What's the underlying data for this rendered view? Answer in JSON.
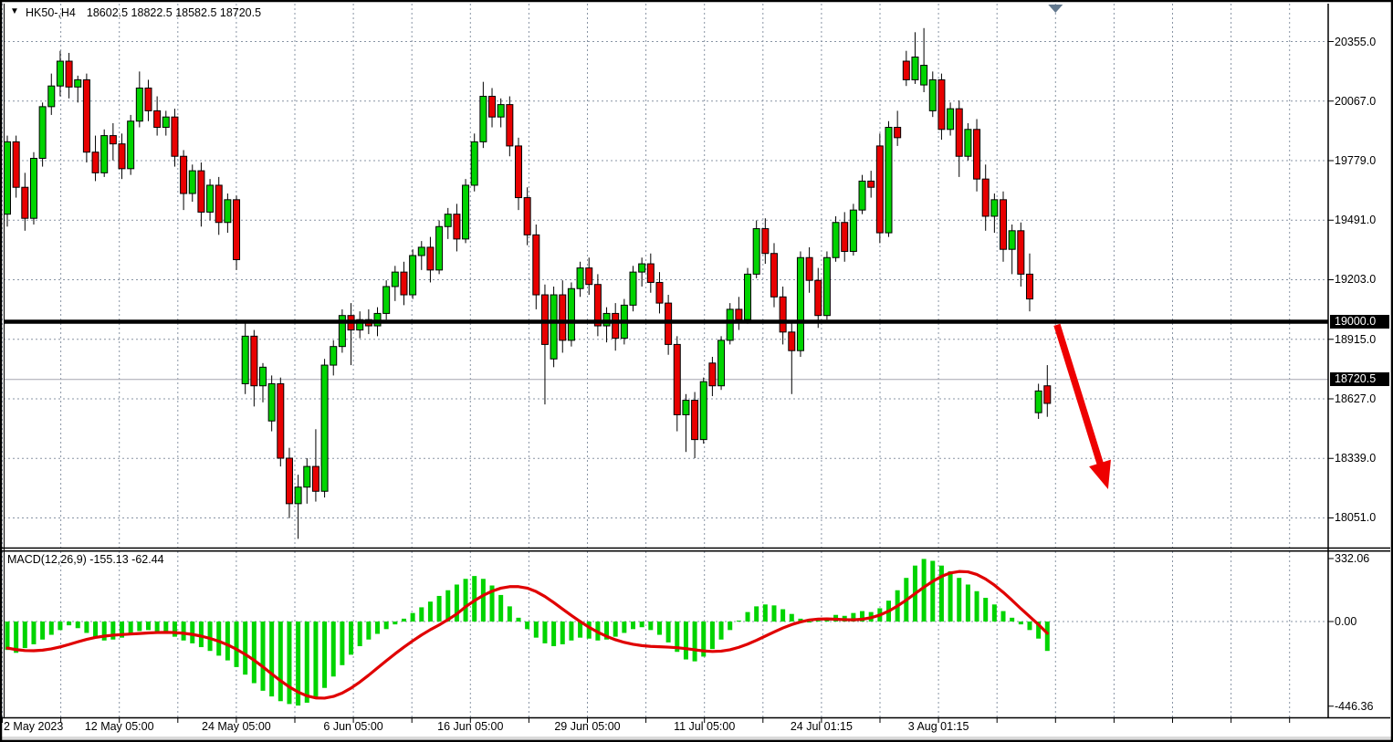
{
  "title_bar": {
    "dropdown_icon": "▼",
    "symbol_period": "HK50-,H4",
    "ohlc_values": "18602.5 18822.5 18582.5 18720.5"
  },
  "price_axis": {
    "tick_labels": [
      "20355.0",
      "20067.0",
      "19779.0",
      "19491.0",
      "19203.0",
      "18915.0",
      "18627.0",
      "18339.0",
      "18051.0"
    ],
    "tick_values": [
      20355,
      20067,
      19779,
      19491,
      19203,
      18915,
      18627,
      18339,
      18051
    ],
    "highlighted_tags": [
      {
        "label": "19000.0",
        "value": 19000.0
      },
      {
        "label": "18720.5",
        "value": 18720.5
      }
    ]
  },
  "macd_panel": {
    "indicator_label": "MACD(12,26,9) -155.13 -62.44",
    "axis_labels": [
      "332.06",
      "0.00",
      "-446.36"
    ],
    "axis_values": [
      332.06,
      0,
      -446.36
    ]
  },
  "time_axis": {
    "labels": [
      "2 May 2023",
      "12 May 05:00",
      "24 May 05:00",
      "6 Jun 05:00",
      "16 Jun 05:00",
      "29 Jun 05:00",
      "11 Jul 05:00",
      "24 Jul 01:15",
      "3 Aug 01:15"
    ],
    "grid_positions": [
      0,
      2,
      4,
      6,
      8,
      10,
      12,
      14,
      16
    ]
  },
  "colors": {
    "bull": "#00D400",
    "bear": "#E80000",
    "candle_outline": "#000000",
    "grid": "#8894A4",
    "level_line": "#000000",
    "last_price_line": "#A6A6B0",
    "arrow": "#EE0000",
    "signal_line": "#E00000",
    "histogram": "#00D400",
    "shift_marker": "#63798F",
    "tag_bg": "#000000",
    "tag_text": "#FFFFFF"
  },
  "chart_data": [
    {
      "type": "candlestick",
      "title": "HK50-,H4",
      "timeframe": "H4",
      "current_bar": {
        "open": 18602.5,
        "high": 18822.5,
        "low": 18582.5,
        "close": 18720.5
      },
      "y_ticks": [
        20355,
        20067,
        19779,
        19491,
        19203,
        18915,
        18627,
        18339,
        18051
      ],
      "ylim": [
        17912,
        20538
      ],
      "x_tick_labels": [
        "2 May 2023",
        "12 May 05:00",
        "24 May 05:00",
        "6 Jun 05:00",
        "16 Jun 05:00",
        "29 Jun 05:00",
        "11 Jul 05:00",
        "24 Jul 01:15",
        "3 Aug 01:15"
      ],
      "horizontal_level": 19000.0,
      "last_price": 18720.5,
      "annotation_arrow": {
        "from_bar": 119.1,
        "from_price": 18985,
        "to_bar": 124.9,
        "to_price": 18190
      },
      "candles": [
        [
          19520,
          19900,
          19460,
          19870
        ],
        [
          19870,
          19900,
          19600,
          19650
        ],
        [
          19650,
          19720,
          19440,
          19500
        ],
        [
          19500,
          19820,
          19470,
          19790
        ],
        [
          19790,
          20060,
          19750,
          20040
        ],
        [
          20040,
          20200,
          20000,
          20140
        ],
        [
          20140,
          20310,
          20090,
          20260
        ],
        [
          20260,
          20300,
          20080,
          20135
        ],
        [
          20135,
          20190,
          20060,
          20170
        ],
        [
          20170,
          20200,
          19770,
          19820
        ],
        [
          19820,
          19900,
          19680,
          19720
        ],
        [
          19720,
          19930,
          19700,
          19900
        ],
        [
          19900,
          19960,
          19780,
          19860
        ],
        [
          19860,
          19910,
          19690,
          19740
        ],
        [
          19740,
          20000,
          19710,
          19970
        ],
        [
          19970,
          20210,
          19940,
          20130
        ],
        [
          20130,
          20170,
          19970,
          20020
        ],
        [
          20020,
          20090,
          19900,
          19940
        ],
        [
          19940,
          20020,
          19900,
          19990
        ],
        [
          19990,
          20030,
          19750,
          19800
        ],
        [
          19800,
          19830,
          19540,
          19620
        ],
        [
          19620,
          19760,
          19580,
          19730
        ],
        [
          19730,
          19770,
          19460,
          19530
        ],
        [
          19530,
          19690,
          19490,
          19660
        ],
        [
          19660,
          19700,
          19420,
          19480
        ],
        [
          19480,
          19620,
          19430,
          19590
        ],
        [
          19590,
          19610,
          19250,
          19300
        ],
        [
          18700,
          19000,
          18650,
          18930
        ],
        [
          18930,
          18960,
          18590,
          18690
        ],
        [
          18690,
          18800,
          18610,
          18780
        ],
        [
          18520,
          18740,
          18470,
          18700
        ],
        [
          18700,
          18730,
          18300,
          18340
        ],
        [
          18340,
          18390,
          18050,
          18120
        ],
        [
          18120,
          18260,
          17950,
          18200
        ],
        [
          18200,
          18340,
          18120,
          18300
        ],
        [
          18300,
          18480,
          18130,
          18180
        ],
        [
          18180,
          18820,
          18150,
          18790
        ],
        [
          18790,
          18910,
          18740,
          18880
        ],
        [
          18880,
          19060,
          18850,
          19030
        ],
        [
          19030,
          19090,
          18790,
          18960
        ],
        [
          18960,
          19050,
          18920,
          19010
        ],
        [
          19010,
          19060,
          18940,
          18980
        ],
        [
          18980,
          19070,
          18930,
          19040
        ],
        [
          19040,
          19200,
          19010,
          19170
        ],
        [
          19170,
          19270,
          19100,
          19240
        ],
        [
          19240,
          19290,
          19080,
          19130
        ],
        [
          19130,
          19350,
          19110,
          19320
        ],
        [
          19320,
          19390,
          19250,
          19360
        ],
        [
          19360,
          19410,
          19190,
          19250
        ],
        [
          19250,
          19490,
          19230,
          19460
        ],
        [
          19460,
          19550,
          19400,
          19520
        ],
        [
          19520,
          19570,
          19340,
          19400
        ],
        [
          19400,
          19690,
          19380,
          19660
        ],
        [
          19660,
          19910,
          19630,
          19870
        ],
        [
          19870,
          20160,
          19840,
          20090
        ],
        [
          20090,
          20130,
          19940,
          19990
        ],
        [
          19990,
          20080,
          19940,
          20050
        ],
        [
          20050,
          20090,
          19800,
          19850
        ],
        [
          19850,
          19890,
          19540,
          19600
        ],
        [
          19600,
          19650,
          19370,
          19420
        ],
        [
          19420,
          19470,
          19060,
          19130
        ],
        [
          19130,
          19180,
          18600,
          18890
        ],
        [
          18820,
          19170,
          18780,
          19130
        ],
        [
          19130,
          19200,
          18850,
          18910
        ],
        [
          18910,
          19190,
          18880,
          19160
        ],
        [
          19160,
          19290,
          19120,
          19260
        ],
        [
          19260,
          19310,
          19130,
          19180
        ],
        [
          19180,
          19230,
          18930,
          18980
        ],
        [
          18980,
          19070,
          18900,
          19040
        ],
        [
          19040,
          19090,
          18860,
          18920
        ],
        [
          18920,
          19110,
          18890,
          19080
        ],
        [
          19080,
          19270,
          19050,
          19240
        ],
        [
          19240,
          19310,
          19170,
          19280
        ],
        [
          19280,
          19330,
          19140,
          19190
        ],
        [
          19190,
          19240,
          19040,
          19090
        ],
        [
          19090,
          19130,
          18840,
          18890
        ],
        [
          18890,
          18930,
          18470,
          18550
        ],
        [
          18550,
          18650,
          18370,
          18620
        ],
        [
          18620,
          18660,
          18340,
          18430
        ],
        [
          18430,
          18730,
          18410,
          18710
        ],
        [
          18800,
          18830,
          18640,
          18690
        ],
        [
          18690,
          18930,
          18670,
          18910
        ],
        [
          18910,
          19090,
          18890,
          19060
        ],
        [
          19060,
          19120,
          18960,
          19010
        ],
        [
          19010,
          19260,
          18990,
          19230
        ],
        [
          19230,
          19490,
          19210,
          19450
        ],
        [
          19450,
          19500,
          19280,
          19330
        ],
        [
          19330,
          19380,
          19070,
          19120
        ],
        [
          19120,
          19170,
          18890,
          18950
        ],
        [
          18950,
          19000,
          18650,
          18860
        ],
        [
          18860,
          19340,
          18830,
          19310
        ],
        [
          19310,
          19360,
          19140,
          19200
        ],
        [
          19200,
          19260,
          18970,
          19030
        ],
        [
          19030,
          19340,
          19010,
          19310
        ],
        [
          19310,
          19510,
          19290,
          19480
        ],
        [
          19480,
          19530,
          19290,
          19340
        ],
        [
          19340,
          19570,
          19320,
          19540
        ],
        [
          19540,
          19710,
          19520,
          19680
        ],
        [
          19680,
          19730,
          19600,
          19650
        ],
        [
          19850,
          19910,
          19380,
          19430
        ],
        [
          19430,
          19970,
          19410,
          19940
        ],
        [
          19940,
          20020,
          19850,
          19890
        ],
        [
          20260,
          20310,
          20140,
          20170
        ],
        [
          20170,
          20400,
          20150,
          20280
        ],
        [
          20145,
          20420,
          20110,
          20240
        ],
        [
          20020,
          20210,
          19990,
          20170
        ],
        [
          20170,
          20200,
          19880,
          19930
        ],
        [
          19930,
          20060,
          19900,
          20030
        ],
        [
          20030,
          20070,
          19700,
          19800
        ],
        [
          19800,
          19960,
          19780,
          19930
        ],
        [
          19930,
          19980,
          19630,
          19690
        ],
        [
          19690,
          19760,
          19440,
          19510
        ],
        [
          19510,
          19620,
          19430,
          19590
        ],
        [
          19590,
          19630,
          19290,
          19350
        ],
        [
          19350,
          19470,
          19230,
          19440
        ],
        [
          19440,
          19480,
          19170,
          19230
        ],
        [
          19230,
          19330,
          19050,
          19110
        ],
        [
          18560,
          18700,
          18530,
          18665
        ],
        [
          18690,
          18790,
          18540,
          18605
        ]
      ]
    },
    {
      "type": "bar",
      "title": "MACD(12,26,9)",
      "macd_current": -155.13,
      "signal_current": -62.44,
      "y_ticks": [
        332.06,
        0,
        -446.36
      ],
      "ylim": [
        -446.36,
        332.06
      ],
      "values": [
        -150,
        -165,
        -140,
        -120,
        -95,
        -70,
        -45,
        -20,
        -35,
        -60,
        -85,
        -100,
        -95,
        -85,
        -70,
        -50,
        -45,
        -55,
        -65,
        -80,
        -100,
        -115,
        -135,
        -155,
        -180,
        -205,
        -240,
        -280,
        -325,
        -365,
        -395,
        -420,
        -435,
        -443,
        -428,
        -400,
        -350,
        -290,
        -230,
        -175,
        -130,
        -95,
        -65,
        -40,
        -15,
        15,
        45,
        75,
        105,
        135,
        165,
        195,
        225,
        240,
        225,
        190,
        140,
        80,
        20,
        -40,
        -85,
        -115,
        -130,
        -120,
        -100,
        -85,
        -90,
        -100,
        -95,
        -80,
        -60,
        -40,
        -30,
        -45,
        -70,
        -110,
        -160,
        -200,
        -210,
        -185,
        -145,
        -95,
        -45,
        5,
        50,
        80,
        90,
        85,
        65,
        40,
        15,
        -5,
        5,
        20,
        35,
        30,
        45,
        55,
        50,
        70,
        110,
        165,
        230,
        295,
        330,
        320,
        295,
        265,
        230,
        195,
        160,
        125,
        90,
        55,
        20,
        -15,
        -45,
        -90,
        -155
      ],
      "series": [
        {
          "name": "signal",
          "values": [
            -140,
            -148,
            -153,
            -154,
            -151,
            -144,
            -134,
            -121,
            -107,
            -94,
            -84,
            -77,
            -72,
            -69,
            -66,
            -63,
            -60,
            -58,
            -57,
            -58,
            -62,
            -68,
            -77,
            -89,
            -104,
            -123,
            -146,
            -173,
            -204,
            -239,
            -276,
            -312,
            -345,
            -372,
            -392,
            -403,
            -404,
            -395,
            -377,
            -351,
            -319,
            -283,
            -245,
            -207,
            -170,
            -135,
            -102,
            -71,
            -43,
            -18,
            10,
            40,
            78,
            110,
            138,
            160,
            176,
            184,
            184,
            176,
            158,
            132,
            100,
            66,
            32,
            0,
            -30,
            -56,
            -78,
            -96,
            -110,
            -120,
            -127,
            -131,
            -133,
            -135,
            -138,
            -143,
            -149,
            -155,
            -158,
            -156,
            -149,
            -136,
            -119,
            -99,
            -77,
            -55,
            -34,
            -16,
            -2,
            8,
            13,
            14,
            12,
            10,
            9,
            12,
            20,
            34,
            55,
            82,
            113,
            147,
            181,
            212,
            238,
            256,
            264,
            262,
            248,
            224,
            192,
            154,
            112,
            68,
            26,
            -16,
            -62
          ]
        }
      ]
    }
  ]
}
